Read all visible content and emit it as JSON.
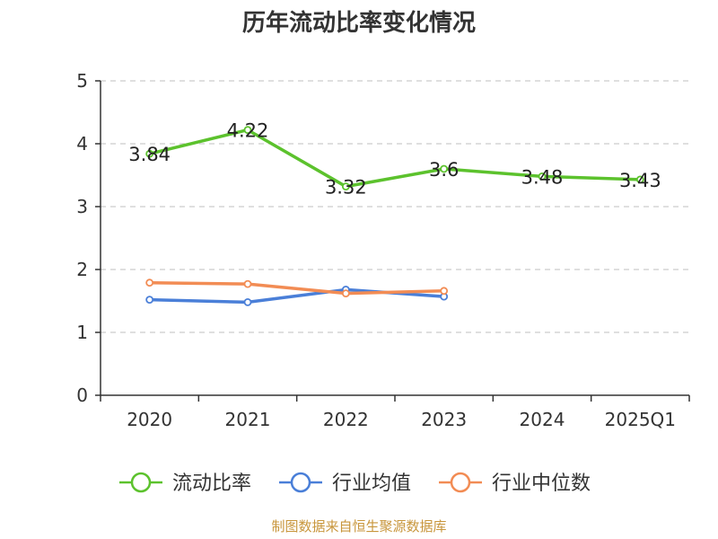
{
  "chart_data": {
    "type": "line",
    "title": "历年流动比率变化情况",
    "xlabel": "",
    "ylabel": "",
    "categories": [
      "2020",
      "2021",
      "2022",
      "2023",
      "2024",
      "2025Q1"
    ],
    "ylim": [
      0,
      5
    ],
    "yticks": [
      0,
      1,
      2,
      3,
      4,
      5
    ],
    "grid": true,
    "legend_position": "bottom",
    "series": [
      {
        "name": "流动比率",
        "color": "#5cc22d",
        "values": [
          3.84,
          4.22,
          3.32,
          3.6,
          3.48,
          3.43
        ],
        "labels": [
          "3.84",
          "4.22",
          "3.32",
          "3.6",
          "3.48",
          "3.43"
        ]
      },
      {
        "name": "行业均值",
        "color": "#4a7fd8",
        "values": [
          1.52,
          1.48,
          1.68,
          1.57,
          null,
          null
        ]
      },
      {
        "name": "行业中位数",
        "color": "#f28c54",
        "values": [
          1.79,
          1.77,
          1.62,
          1.66,
          null,
          null
        ]
      }
    ]
  },
  "source": "制图数据来自恒生聚源数据库"
}
